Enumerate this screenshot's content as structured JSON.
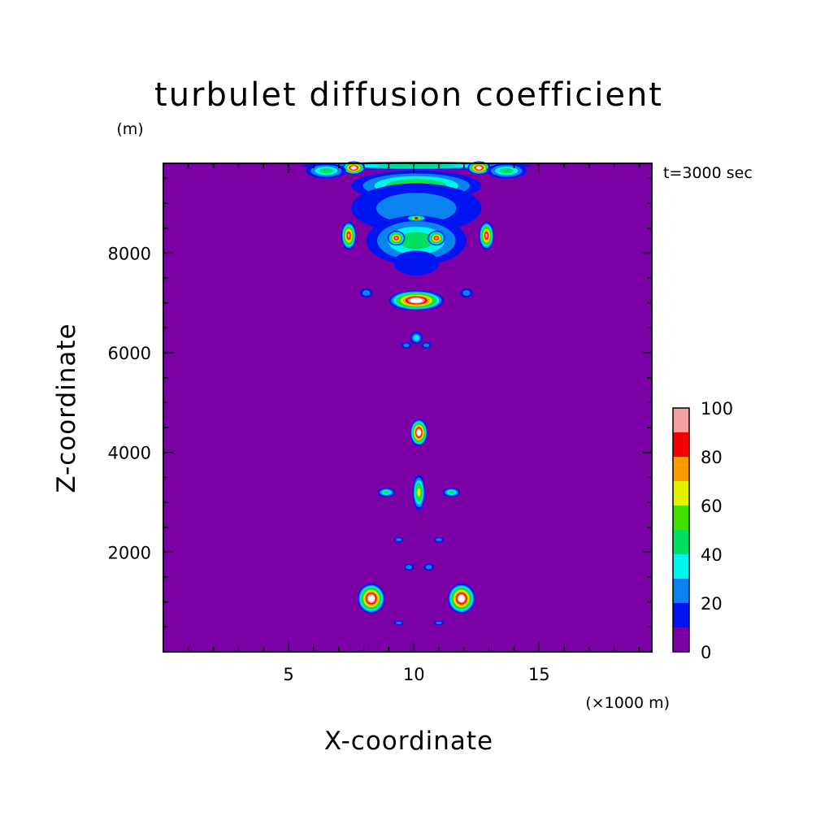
{
  "chart_data": {
    "type": "heatmap",
    "title": "turbulet diffusion coefficient",
    "xlabel": "X-coordinate",
    "ylabel": "Z-coordinate",
    "x_unit": "(×1000 m)",
    "y_unit": "(m)",
    "time_label": "t=3000 sec",
    "xlim": [
      0,
      19.5
    ],
    "ylim": [
      0,
      9800
    ],
    "x_ticks": [
      5,
      10,
      15
    ],
    "y_ticks": [
      2000,
      4000,
      6000,
      8000
    ],
    "x_tick_labels": [
      "5",
      "10",
      "15"
    ],
    "y_tick_labels": [
      "2000",
      "4000",
      "6000",
      "8000"
    ],
    "grid": false,
    "colorbar": {
      "placement": "right",
      "levels": [
        0,
        10,
        20,
        30,
        40,
        50,
        60,
        70,
        80,
        90,
        100
      ],
      "labels": [
        "0",
        "20",
        "40",
        "60",
        "80",
        "100"
      ],
      "label_values": [
        0,
        20,
        40,
        60,
        80,
        100
      ],
      "colors": [
        "#7b00a5",
        "#0015f2",
        "#0a82f0",
        "#00f5f0",
        "#00e060",
        "#40e000",
        "#e5ef00",
        "#ff9b00",
        "#f50000",
        "#f5a0a0"
      ],
      "over_color": "#ffffff"
    },
    "features": [
      {
        "x": 10.1,
        "z": 9750,
        "value": 45,
        "rx": 4.6,
        "rz": 80
      },
      {
        "x": 7.6,
        "z": 9710,
        "value": 102,
        "rx": 0.45,
        "rz": 130
      },
      {
        "x": 12.6,
        "z": 9710,
        "value": 102,
        "rx": 0.45,
        "rz": 130
      },
      {
        "x": 6.5,
        "z": 9650,
        "value": 40,
        "rx": 0.8,
        "rz": 150
      },
      {
        "x": 13.7,
        "z": 9650,
        "value": 40,
        "rx": 0.8,
        "rz": 150
      },
      {
        "x": 10.1,
        "z": 9350,
        "value": 55,
        "rx": 2.6,
        "rz": 300
      },
      {
        "x": 10.1,
        "z": 8900,
        "value": 25,
        "rx": 2.6,
        "rz": 500
      },
      {
        "x": 10.1,
        "z": 8250,
        "value": 45,
        "rx": 2.0,
        "rz": 500
      },
      {
        "x": 7.4,
        "z": 8350,
        "value": 95,
        "rx": 0.3,
        "rz": 280
      },
      {
        "x": 12.9,
        "z": 8350,
        "value": 95,
        "rx": 0.3,
        "rz": 280
      },
      {
        "x": 9.3,
        "z": 8300,
        "value": 98,
        "rx": 0.35,
        "rz": 150
      },
      {
        "x": 10.9,
        "z": 8300,
        "value": 98,
        "rx": 0.35,
        "rz": 150
      },
      {
        "x": 10.1,
        "z": 8700,
        "value": 85,
        "rx": 0.4,
        "rz": 60
      },
      {
        "x": 10.1,
        "z": 7800,
        "value": 10,
        "rx": 0.9,
        "rz": 250
      },
      {
        "x": 10.1,
        "z": 7050,
        "value": 105,
        "rx": 1.1,
        "rz": 200
      },
      {
        "x": 8.1,
        "z": 7200,
        "value": 25,
        "rx": 0.25,
        "rz": 90
      },
      {
        "x": 12.1,
        "z": 7200,
        "value": 25,
        "rx": 0.25,
        "rz": 90
      },
      {
        "x": 10.1,
        "z": 6300,
        "value": 30,
        "rx": 0.25,
        "rz": 120
      },
      {
        "x": 9.7,
        "z": 6150,
        "value": 25,
        "rx": 0.2,
        "rz": 60
      },
      {
        "x": 10.5,
        "z": 6150,
        "value": 25,
        "rx": 0.2,
        "rz": 60
      },
      {
        "x": 10.2,
        "z": 4400,
        "value": 105,
        "rx": 0.35,
        "rz": 270
      },
      {
        "x": 10.2,
        "z": 3200,
        "value": 60,
        "rx": 0.25,
        "rz": 350
      },
      {
        "x": 8.9,
        "z": 3200,
        "value": 40,
        "rx": 0.35,
        "rz": 90
      },
      {
        "x": 11.5,
        "z": 3200,
        "value": 40,
        "rx": 0.35,
        "rz": 90
      },
      {
        "x": 9.4,
        "z": 2250,
        "value": 25,
        "rx": 0.2,
        "rz": 50
      },
      {
        "x": 11.0,
        "z": 2250,
        "value": 25,
        "rx": 0.2,
        "rz": 50
      },
      {
        "x": 9.8,
        "z": 1700,
        "value": 25,
        "rx": 0.2,
        "rz": 70
      },
      {
        "x": 10.6,
        "z": 1700,
        "value": 25,
        "rx": 0.2,
        "rz": 70
      },
      {
        "x": 8.3,
        "z": 1070,
        "value": 105,
        "rx": 0.55,
        "rz": 300
      },
      {
        "x": 11.9,
        "z": 1070,
        "value": 105,
        "rx": 0.55,
        "rz": 300
      },
      {
        "x": 9.4,
        "z": 580,
        "value": 25,
        "rx": 0.2,
        "rz": 40
      },
      {
        "x": 11.0,
        "z": 580,
        "value": 25,
        "rx": 0.2,
        "rz": 40
      }
    ]
  }
}
